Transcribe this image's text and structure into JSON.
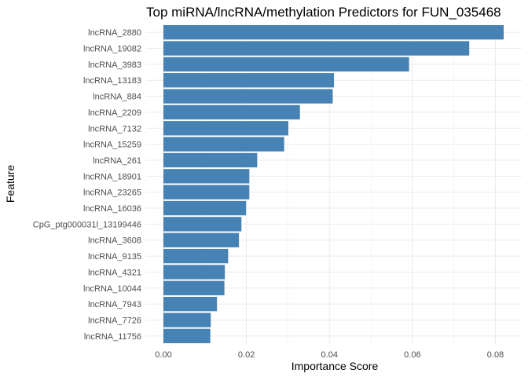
{
  "chart_data": {
    "type": "bar",
    "orientation": "horizontal",
    "title": "Top miRNA/lncRNA/methylation Predictors for FUN_035468",
    "xlabel": "Importance Score",
    "ylabel": "Feature",
    "xlim": [
      0,
      0.0845
    ],
    "xticks": [
      0.0,
      0.02,
      0.04,
      0.06,
      0.08
    ],
    "xtick_labels": [
      "0.00",
      "0.02",
      "0.04",
      "0.06",
      "0.08"
    ],
    "grid": true,
    "bar_color": "#4682B4",
    "categories": [
      "lncRNA_2880",
      "lncRNA_19082",
      "lncRNA_3983",
      "lncRNA_13183",
      "lncRNA_884",
      "lncRNA_2209",
      "lncRNA_7132",
      "lncRNA_15259",
      "lncRNA_261",
      "lncRNA_18901",
      "lncRNA_23265",
      "lncRNA_16036",
      "CpG_ptg000031l_13199446",
      "lncRNA_3608",
      "lncRNA_9135",
      "lncRNA_4321",
      "lncRNA_10044",
      "lncRNA_7943",
      "lncRNA_7726",
      "lncRNA_11756"
    ],
    "values": [
      0.082,
      0.0737,
      0.0592,
      0.0411,
      0.0408,
      0.0329,
      0.0301,
      0.0291,
      0.0226,
      0.0207,
      0.0207,
      0.0199,
      0.0188,
      0.0182,
      0.0156,
      0.0148,
      0.0147,
      0.0129,
      0.0114,
      0.0113
    ]
  }
}
